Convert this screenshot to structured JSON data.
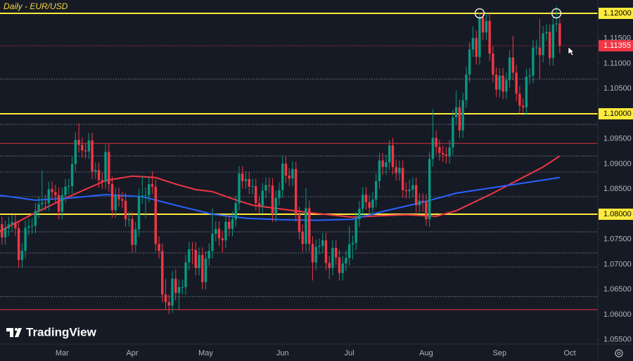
{
  "chart_data": {
    "type": "candlestick",
    "title": "Daily - EUR/USD",
    "watermark": "TradingView",
    "up_color": "#089981",
    "down_color": "#f23645",
    "open": [
      1.079,
      1.078,
      1.0754,
      1.0772,
      1.078,
      1.0784,
      1.0772,
      1.0709,
      1.0727,
      1.0773,
      1.0776,
      1.0777,
      1.0807,
      1.082,
      1.0823,
      1.0822,
      1.085,
      1.0844,
      1.0838,
      1.0805,
      1.0838,
      1.0855,
      1.0856,
      1.09,
      1.0948,
      1.0938,
      1.0927,
      1.0925,
      1.0947,
      1.0885,
      1.0888,
      1.0868,
      1.0865,
      1.0924,
      1.086,
      1.0808,
      1.0838,
      1.083,
      1.0827,
      1.079,
      1.079,
      1.0739,
      1.077,
      1.0836,
      1.0837,
      1.0838,
      1.086,
      1.0855,
      1.0741,
      1.0727,
      1.064,
      1.0625,
      1.0618,
      1.0672,
      1.0643,
      1.0655,
      1.0655,
      1.0704,
      1.073,
      1.0729,
      1.0693,
      1.0719,
      1.0665,
      1.0712,
      1.0727,
      1.0761,
      1.0771,
      1.0752,
      1.0748,
      1.0785,
      1.0771,
      1.079,
      1.0822,
      1.0881,
      1.0866,
      1.087,
      1.0855,
      1.0856,
      1.0822,
      1.0817,
      1.0847,
      1.0858,
      1.0857,
      1.08,
      1.0832,
      1.0848,
      1.0901,
      1.0877,
      1.0871,
      1.089,
      1.08,
      1.0765,
      1.0741,
      1.0812,
      1.0741,
      1.0704,
      1.0735,
      1.0737,
      1.0748,
      1.0703,
      1.0693,
      1.0733,
      1.0714,
      1.0683,
      1.0702,
      1.0713,
      1.074,
      1.0743,
      1.079,
      1.0811,
      1.0839,
      1.0824,
      1.0813,
      1.0829,
      1.0866,
      1.0907,
      1.0894,
      1.0903,
      1.0937,
      1.0894,
      1.0882,
      1.0892,
      1.0848,
      1.0846,
      1.0849,
      1.0858,
      1.0818,
      1.0827,
      1.0825,
      1.079,
      1.091,
      1.0952,
      1.0934,
      1.0922,
      1.0919,
      1.0916,
      1.0933,
      1.0993,
      1.1013,
      1.0967,
      1.1027,
      1.1078,
      1.1128,
      1.1151,
      1.1113,
      1.1192,
      1.1162,
      1.1185,
      1.112,
      1.1078,
      1.1048,
      1.1076,
      1.1044,
      1.1067,
      1.1112,
      1.1082,
      1.104,
      1.1016,
      1.1013,
      1.1074,
      1.1076,
      1.1132,
      1.1132,
      1.1117,
      1.116,
      1.1163,
      1.1111,
      1.1178,
      1.118
    ],
    "high": [
      1.0805,
      1.0795,
      1.0787,
      1.0795,
      1.0799,
      1.0799,
      1.0787,
      1.0742,
      1.0788,
      1.0791,
      1.0792,
      1.0822,
      1.0835,
      1.0888,
      1.0838,
      1.0865,
      1.0865,
      1.0859,
      1.0853,
      1.0853,
      1.087,
      1.0871,
      1.0915,
      1.0963,
      1.0981,
      1.0953,
      1.0942,
      1.0962,
      1.0962,
      1.0903,
      1.0903,
      1.0883,
      1.0939,
      1.0942,
      1.0875,
      1.0853,
      1.0853,
      1.0845,
      1.0842,
      1.0805,
      1.0805,
      1.0785,
      1.0851,
      1.0876,
      1.0853,
      1.0875,
      1.0885,
      1.087,
      1.0756,
      1.0742,
      1.0671,
      1.064,
      1.0687,
      1.069,
      1.067,
      1.067,
      1.0719,
      1.0745,
      1.0745,
      1.0744,
      1.0734,
      1.0734,
      1.0727,
      1.0742,
      1.0812,
      1.0786,
      1.0786,
      1.0767,
      1.08,
      1.08,
      1.0805,
      1.0837,
      1.0896,
      1.0896,
      1.0885,
      1.0885,
      1.0871,
      1.0871,
      1.0837,
      1.0862,
      1.0873,
      1.0873,
      1.0872,
      1.0847,
      1.0863,
      1.0916,
      1.0916,
      1.0892,
      1.0905,
      1.0905,
      1.0815,
      1.078,
      1.0852,
      1.0827,
      1.0756,
      1.075,
      1.0752,
      1.0763,
      1.0763,
      1.0718,
      1.0748,
      1.0748,
      1.0729,
      1.0717,
      1.0728,
      1.0776,
      1.0758,
      1.0805,
      1.0826,
      1.0854,
      1.0854,
      1.0839,
      1.0844,
      1.0881,
      1.0922,
      1.0922,
      1.0918,
      1.0948,
      1.0952,
      1.0909,
      1.0907,
      1.0907,
      1.0863,
      1.0869,
      1.0873,
      1.0873,
      1.0842,
      1.0842,
      1.084,
      1.0925,
      1.1009,
      1.0967,
      1.0949,
      1.0937,
      1.0934,
      1.0948,
      1.1008,
      1.1047,
      1.1028,
      1.1042,
      1.1093,
      1.1143,
      1.1174,
      1.1166,
      1.1201,
      1.1202,
      1.12,
      1.12,
      1.1135,
      1.1093,
      1.1091,
      1.1091,
      1.1082,
      1.1127,
      1.1155,
      1.1097,
      1.1055,
      1.1031,
      1.1089,
      1.1091,
      1.1147,
      1.1147,
      1.1189,
      1.1175,
      1.1178,
      1.1178,
      1.1193,
      1.1214,
      1.119
    ],
    "low": [
      1.0765,
      1.0739,
      1.0739,
      1.0757,
      1.0765,
      1.0757,
      1.0694,
      1.0694,
      1.0712,
      1.0758,
      1.0761,
      1.0762,
      1.0792,
      1.0805,
      1.0807,
      1.0807,
      1.0829,
      1.0823,
      1.079,
      1.079,
      1.0823,
      1.084,
      1.0841,
      1.0885,
      1.0923,
      1.0912,
      1.091,
      1.091,
      1.087,
      1.087,
      1.0853,
      1.085,
      1.085,
      1.0845,
      1.0793,
      1.0793,
      1.0815,
      1.0812,
      1.0775,
      1.0775,
      1.0724,
      1.0724,
      1.0755,
      1.0821,
      1.0792,
      1.0823,
      1.084,
      1.0726,
      1.0712,
      1.0625,
      1.061,
      1.0601,
      1.0603,
      1.0628,
      1.061,
      1.064,
      1.064,
      1.0689,
      1.07,
      1.0678,
      1.0678,
      1.065,
      1.065,
      1.0697,
      1.0712,
      1.0746,
      1.0737,
      1.0723,
      1.0733,
      1.0756,
      1.0756,
      1.0775,
      1.0807,
      1.0851,
      1.0851,
      1.084,
      1.084,
      1.0807,
      1.0802,
      1.0802,
      1.0832,
      1.0842,
      1.0785,
      1.0785,
      1.0817,
      1.0833,
      1.0862,
      1.0856,
      1.0856,
      1.0785,
      1.075,
      1.0726,
      1.0726,
      1.0726,
      1.0668,
      1.0689,
      1.072,
      1.0722,
      1.0688,
      1.0671,
      1.0678,
      1.0699,
      1.0668,
      1.0668,
      1.0687,
      1.0698,
      1.071,
      1.0728,
      1.0775,
      1.0796,
      1.0809,
      1.0798,
      1.0798,
      1.0814,
      1.0851,
      1.0879,
      1.0879,
      1.0888,
      1.0879,
      1.0867,
      1.0867,
      1.0833,
      1.0831,
      1.0831,
      1.0834,
      1.0803,
      1.0803,
      1.0805,
      1.0777,
      1.0775,
      1.0895,
      1.0919,
      1.0907,
      1.0904,
      1.0901,
      1.0901,
      1.0918,
      1.0978,
      1.0952,
      1.0952,
      1.1012,
      1.1063,
      1.1113,
      1.1098,
      1.1098,
      1.1147,
      1.1147,
      1.1105,
      1.1063,
      1.1033,
      1.1033,
      1.1029,
      1.1029,
      1.1052,
      1.1067,
      1.1025,
      1.1001,
      1.1002,
      1.0998,
      1.1059,
      1.1061,
      1.1117,
      1.1068,
      1.1102,
      1.1145,
      1.1096,
      1.1096,
      1.1163,
      1.1121
    ],
    "close": [
      1.078,
      1.0754,
      1.0772,
      1.078,
      1.0784,
      1.0772,
      1.0709,
      1.0727,
      1.0773,
      1.0776,
      1.0777,
      1.0807,
      1.082,
      1.0823,
      1.0822,
      1.085,
      1.0844,
      1.0838,
      1.0805,
      1.0838,
      1.0855,
      1.0856,
      1.09,
      1.0948,
      1.0938,
      1.0927,
      1.0925,
      1.0947,
      1.0885,
      1.0888,
      1.0868,
      1.0865,
      1.0924,
      1.086,
      1.0808,
      1.0838,
      1.083,
      1.0827,
      1.079,
      1.079,
      1.0739,
      1.077,
      1.0836,
      1.0837,
      1.0838,
      1.086,
      1.0855,
      1.0741,
      1.0727,
      1.064,
      1.0625,
      1.0618,
      1.0672,
      1.0643,
      1.0655,
      1.0655,
      1.0704,
      1.073,
      1.0729,
      1.0693,
      1.0719,
      1.0665,
      1.0712,
      1.0727,
      1.0761,
      1.0771,
      1.0752,
      1.0748,
      1.0785,
      1.0771,
      1.079,
      1.0822,
      1.0881,
      1.0866,
      1.087,
      1.0855,
      1.0856,
      1.0822,
      1.0817,
      1.0847,
      1.0858,
      1.0857,
      1.08,
      1.0832,
      1.0848,
      1.0901,
      1.0877,
      1.0871,
      1.089,
      1.08,
      1.0765,
      1.0741,
      1.0812,
      1.0741,
      1.0704,
      1.0735,
      1.0737,
      1.0748,
      1.0703,
      1.0693,
      1.0733,
      1.0714,
      1.0683,
      1.0702,
      1.0713,
      1.074,
      1.0743,
      1.079,
      1.0811,
      1.0839,
      1.0824,
      1.0813,
      1.0829,
      1.0866,
      1.0907,
      1.0894,
      1.0903,
      1.0937,
      1.0894,
      1.0882,
      1.0892,
      1.0848,
      1.0846,
      1.0849,
      1.0858,
      1.0818,
      1.0827,
      1.0825,
      1.079,
      1.091,
      1.0952,
      1.0934,
      1.0922,
      1.0919,
      1.0916,
      1.0933,
      1.0993,
      1.1013,
      1.0967,
      1.1027,
      1.1078,
      1.1128,
      1.1151,
      1.1113,
      1.1192,
      1.1162,
      1.1185,
      1.112,
      1.1078,
      1.1048,
      1.1076,
      1.1044,
      1.1067,
      1.1112,
      1.1082,
      1.104,
      1.1016,
      1.1013,
      1.1074,
      1.1076,
      1.1132,
      1.1132,
      1.1117,
      1.116,
      1.1163,
      1.1111,
      1.1178,
      1.118,
      1.11355
    ],
    "last_price_label": "1.11355",
    "moving_averages": [
      {
        "color": "#f23645",
        "x": [
          0,
          11,
          21,
          32,
          40,
          47,
          53,
          59,
          64,
          70,
          76,
          85,
          93,
          99,
          106,
          114,
          122,
          131,
          137,
          148,
          156,
          163,
          168
        ],
        "values": [
          1.0765,
          1.0803,
          1.0835,
          1.0867,
          1.0876,
          1.0873,
          1.086,
          1.0849,
          1.0845,
          1.0831,
          1.0818,
          1.081,
          1.0803,
          1.0799,
          1.0794,
          1.0797,
          1.0799,
          1.0796,
          1.0807,
          1.0842,
          1.087,
          1.0894,
          1.0916
        ]
      },
      {
        "color": "#2962ff",
        "x": [
          0,
          11,
          21,
          32,
          43,
          53,
          64,
          74,
          85,
          95,
          106,
          116,
          127,
          137,
          148,
          158,
          168
        ],
        "values": [
          1.0838,
          1.0828,
          1.0832,
          1.0839,
          1.0835,
          1.0818,
          1.08,
          1.0792,
          1.0789,
          1.0788,
          1.079,
          1.0807,
          1.0824,
          1.0842,
          1.0853,
          1.0863,
          1.0873
        ]
      }
    ],
    "levels": [
      {
        "value": 1.12,
        "label": "1.12000",
        "color": "#ffeb3b"
      },
      {
        "value": 1.1,
        "label": "1.10000",
        "color": "#ffeb3b"
      },
      {
        "value": 1.08,
        "label": "1.08000",
        "color": "#ffeb3b"
      }
    ],
    "lines": [
      {
        "value": 1.0941,
        "color": "#f23645"
      },
      {
        "value": 1.061,
        "color": "#f23645"
      }
    ],
    "dotted_levels": [
      1.1069,
      1.0979,
      1.0916,
      1.0884,
      1.0835,
      1.0765,
      1.0723,
      1.0695,
      1.0636
    ],
    "markers": [
      {
        "x": 144,
        "value": 1.12
      },
      {
        "x": 167,
        "value": 1.12
      }
    ],
    "xlim": [
      0.4,
      179.4
    ],
    "xticks": [
      {
        "value": 19,
        "label": "Mar"
      },
      {
        "value": 40,
        "label": "Apr"
      },
      {
        "value": 62,
        "label": "May"
      },
      {
        "value": 85,
        "label": "Jun"
      },
      {
        "value": 105,
        "label": "Jul"
      },
      {
        "value": 128,
        "label": "Aug"
      },
      {
        "value": 150,
        "label": "Sep"
      },
      {
        "value": 171,
        "label": "Oct"
      }
    ],
    "ylim": [
      1.05413,
      1.12266
    ],
    "yticks": [
      {
        "value": 1.12,
        "label": "1.12000"
      },
      {
        "value": 1.115,
        "label": "1.11500"
      },
      {
        "value": 1.11,
        "label": "1.11000"
      },
      {
        "value": 1.105,
        "label": "1.10500"
      },
      {
        "value": 1.1,
        "label": "1.10000"
      },
      {
        "value": 1.095,
        "label": "1.09500"
      },
      {
        "value": 1.09,
        "label": "1.09000"
      },
      {
        "value": 1.085,
        "label": "1.08500"
      },
      {
        "value": 1.08,
        "label": "1.08000"
      },
      {
        "value": 1.075,
        "label": "1.07500"
      },
      {
        "value": 1.07,
        "label": "1.07000"
      },
      {
        "value": 1.065,
        "label": "1.06500"
      },
      {
        "value": 1.06,
        "label": "1.06000"
      },
      {
        "value": 1.055,
        "label": "1.05500"
      }
    ],
    "grid": false
  }
}
